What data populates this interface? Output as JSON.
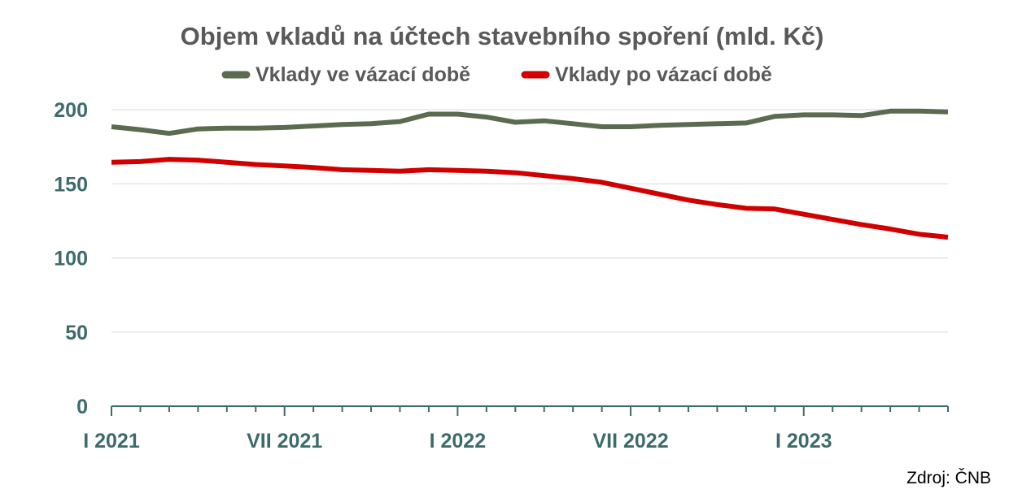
{
  "chart_data": {
    "type": "line",
    "title": "Objem vkladů na účtech stavebního spoření (mld. Kč)",
    "source": "Zdroj: ČNB",
    "ylim": [
      0,
      200
    ],
    "yticks": [
      "0",
      "50",
      "100",
      "150",
      "200"
    ],
    "xtick_labels": [
      {
        "index": 0,
        "label": "I 2021"
      },
      {
        "index": 6,
        "label": "VII 2021"
      },
      {
        "index": 12,
        "label": "I 2022"
      },
      {
        "index": 18,
        "label": "VII 2022"
      },
      {
        "index": 24,
        "label": "I 2023"
      }
    ],
    "x": [
      "I 2021",
      "II 2021",
      "III 2021",
      "IV 2021",
      "V 2021",
      "VI 2021",
      "VII 2021",
      "VIII 2021",
      "IX 2021",
      "X 2021",
      "XI 2021",
      "XII 2021",
      "I 2022",
      "II 2022",
      "III 2022",
      "IV 2022",
      "V 2022",
      "VI 2022",
      "VII 2022",
      "VIII 2022",
      "IX 2022",
      "X 2022",
      "XI 2022",
      "XII 2022",
      "I 2023",
      "II 2023",
      "III 2023",
      "IV 2023",
      "V 2023",
      "VI 2023"
    ],
    "grid": true,
    "legend_position": "top",
    "series": [
      {
        "name": "Vklady ve vázací době",
        "color": "#5a6b4f",
        "values": [
          188.5,
          186.5,
          184,
          187,
          187.5,
          187.5,
          188,
          189,
          190,
          190.5,
          192,
          197,
          197,
          195,
          191.5,
          192.5,
          190.5,
          188.5,
          188.5,
          189.5,
          190,
          190.5,
          191,
          195.5,
          196.5,
          196.5,
          196,
          199,
          199,
          198.5
        ]
      },
      {
        "name": "Vklady po vázací době",
        "color": "#d10000",
        "values": [
          164.5,
          165,
          166.5,
          166,
          164.5,
          163,
          162,
          161,
          159.5,
          159,
          158.5,
          159.5,
          159,
          158.5,
          157.5,
          155.5,
          153.5,
          151,
          147,
          143,
          139,
          136,
          133.5,
          133,
          129.5,
          126,
          122.5,
          119.5,
          116,
          114
        ]
      }
    ]
  }
}
